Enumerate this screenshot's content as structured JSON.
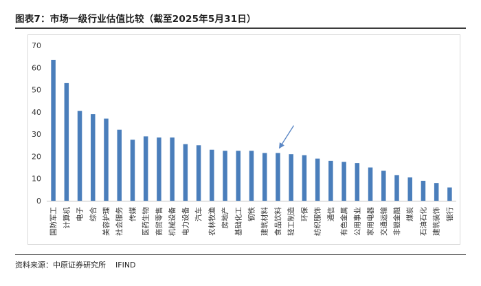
{
  "title": "图表7：市场一级行业估值比较（截至2025年5月31日）",
  "source_prefix": "资料来源：中原证券研究所",
  "source_suffix": "IFIND",
  "colors": {
    "bar": "#4a7ebb",
    "arrow": "#5b87c5",
    "grid": "#d9d9d9",
    "axis": "#bfbfbf"
  },
  "chart_data": {
    "type": "bar",
    "title": "",
    "xlabel": "",
    "ylabel": "",
    "ylim": [
      0,
      70
    ],
    "yticks": [
      0,
      10,
      20,
      30,
      40,
      50,
      60,
      70
    ],
    "grid": false,
    "categories": [
      "国防军工",
      "计算机",
      "电子",
      "综合",
      "美容护理",
      "社会服务",
      "传媒",
      "医药生物",
      "商贸零售",
      "机械设备",
      "电力设备",
      "汽车",
      "农林牧渔",
      "房地产",
      "基础化工",
      "钢铁",
      "建筑材料",
      "食品饮料",
      "轻工制造",
      "环保",
      "纺织服饰",
      "通信",
      "有色金属",
      "公用事业",
      "家用电器",
      "交通运输",
      "非银金融",
      "煤炭",
      "石油石化",
      "建筑装饰",
      "银行"
    ],
    "values": [
      63.5,
      53,
      40.5,
      39,
      37,
      32,
      27.5,
      29,
      28.5,
      28.5,
      25.5,
      25,
      23,
      22.5,
      22.5,
      22.5,
      21.5,
      21.5,
      21,
      20.5,
      19,
      18,
      17.5,
      17,
      15,
      13.5,
      11.5,
      10.5,
      9,
      8,
      6
    ],
    "annotations": [
      {
        "type": "arrow",
        "category": "食品饮料"
      }
    ]
  }
}
